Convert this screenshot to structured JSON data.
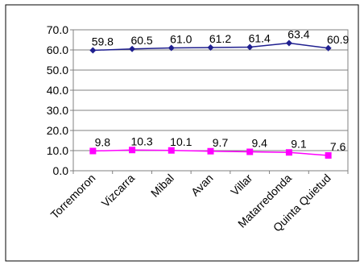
{
  "chart_data": {
    "type": "line",
    "categories": [
      "Torremoron",
      "Vizcarra",
      "Mibal",
      "Avan",
      "Villar",
      "Matarredonda",
      "Quinta Quietud"
    ],
    "series": [
      {
        "values": [
          59.8,
          60.5,
          61.0,
          61.2,
          61.4,
          63.4,
          60.9
        ],
        "color": "#1f1f8f",
        "marker": "diamond"
      },
      {
        "values": [
          9.8,
          10.3,
          10.1,
          9.7,
          9.4,
          9.1,
          7.6
        ],
        "color": "#ff00ff",
        "marker": "square"
      }
    ],
    "ylim": [
      0,
      70
    ],
    "yticks": [
      0,
      10,
      20,
      30,
      40,
      50,
      60,
      70
    ],
    "ytick_labels": [
      "0.0",
      "10.0",
      "20.0",
      "30.0",
      "40.0",
      "50.0",
      "60.0",
      "70.0"
    ],
    "data_labels": [
      [
        "59.8",
        "60.5",
        "61.0",
        "61.2",
        "61.4",
        "63.4",
        "60.9"
      ],
      [
        "9.8",
        "10.3",
        "10.1",
        "9.7",
        "9.4",
        "9.1",
        "7.6"
      ]
    ],
    "grid": true,
    "gridline_color": "#808080",
    "xlabel": "",
    "ylabel": "",
    "title": ""
  }
}
